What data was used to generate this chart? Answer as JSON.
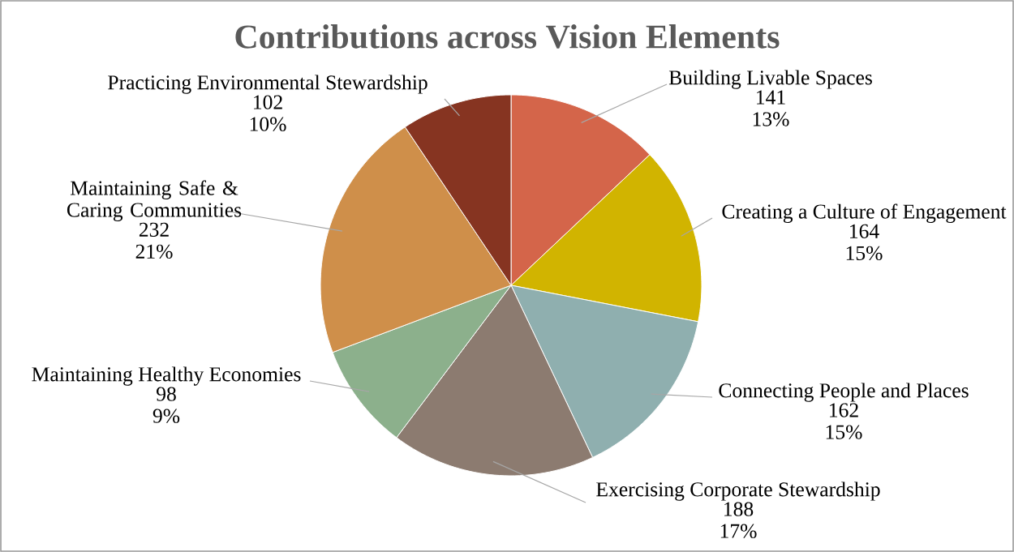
{
  "chart_data": {
    "type": "pie",
    "title": "Contributions across Vision Elements",
    "categories": [
      "Building Livable Spaces",
      "Creating a Culture of Engagement",
      "Connecting People and Places",
      "Exercising Corporate Stewardship",
      "Maintaining Healthy Economies",
      "Maintaining Safe & Caring Communities",
      "Practicing Environmental Stewardship"
    ],
    "values": [
      141,
      164,
      162,
      188,
      98,
      232,
      102
    ],
    "colors": [
      "#d4654a",
      "#d1b400",
      "#8fafaf",
      "#8c7b70",
      "#8cb08c",
      "#cf8f4a",
      "#863421"
    ],
    "value_labels": [
      "141 13%",
      "164 15%",
      "162 15%",
      "188 17%",
      "98 9%",
      "232 21%",
      "102 10%"
    ]
  }
}
